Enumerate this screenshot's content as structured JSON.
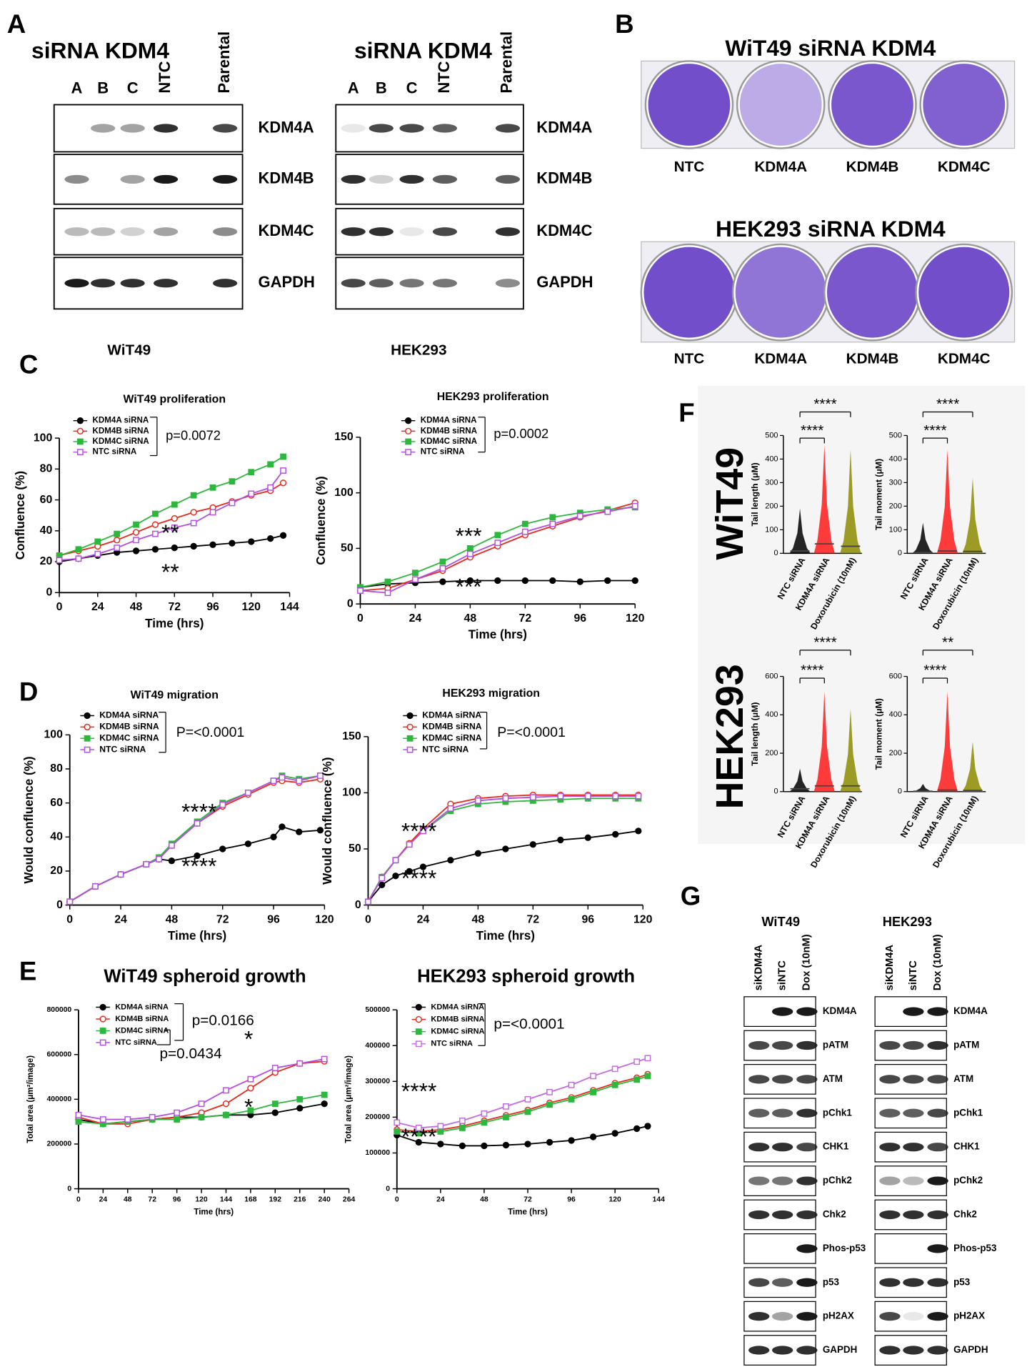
{
  "panel_labels": [
    "A",
    "B",
    "C",
    "D",
    "E",
    "F",
    "G"
  ],
  "blots_a": [
    {
      "title": "siRNA KDM4",
      "lanes": [
        "A",
        "B",
        "C",
        "NTC",
        "Parental"
      ],
      "rows": [
        "KDM4A",
        "KDM4B",
        "KDM4C",
        "GAPDH"
      ],
      "cell_line": "WiT49"
    },
    {
      "title": "siRNA KDM4",
      "lanes": [
        "A",
        "B",
        "C",
        "NTC",
        "Parental"
      ],
      "rows": [
        "KDM4A",
        "KDM4B",
        "KDM4C",
        "GAPDH"
      ],
      "cell_line": "HEK293"
    }
  ],
  "colonies_b": [
    {
      "title": "WiT49 siRNA KDM4",
      "wells": [
        "NTC",
        "KDM4A",
        "KDM4B",
        "KDM4C"
      ]
    },
    {
      "title": "HEK293 siRNA KDM4",
      "wells": [
        "NTC",
        "KDM4A",
        "KDM4B",
        "KDM4C"
      ]
    }
  ],
  "side_labels_f": [
    "WiT49",
    "HEK293"
  ],
  "blots_g": [
    {
      "title": "WiT49",
      "lanes": [
        "siKDM4A",
        "siNTC",
        "Dox (10nM)"
      ],
      "rows": [
        "KDM4A",
        "pATM",
        "ATM",
        "pChk1",
        "CHK1",
        "pChk2",
        "Chk2",
        "Phos-p53",
        "p53",
        "pH2AX",
        "GAPDH"
      ]
    },
    {
      "title": "HEK293",
      "lanes": [
        "siKDM4A",
        "siNTC",
        "Dox (10nM)"
      ],
      "rows": [
        "KDM4A",
        "pATM",
        "ATM",
        "pChk1",
        "CHK1",
        "pChk2",
        "Chk2",
        "Phos-p53",
        "p53",
        "pH2AX",
        "GAPDH"
      ]
    }
  ],
  "chart_data": [
    {
      "type": "line",
      "title": "WiT49 proliferation",
      "xlabel": "Time (hrs)",
      "ylabel": "Confluence (%)",
      "xlim": [
        0,
        144
      ],
      "xticks": [
        0,
        24,
        48,
        72,
        96,
        120,
        144
      ],
      "ylim": [
        0,
        100
      ],
      "yticks": [
        0,
        20,
        40,
        60,
        80,
        100
      ],
      "x": [
        0,
        12,
        24,
        36,
        48,
        60,
        72,
        84,
        96,
        108,
        120,
        132,
        140
      ],
      "series": [
        {
          "name": "KDM4A siRNA",
          "color": "#000000",
          "marker": "circle",
          "values": [
            20,
            22,
            24,
            26,
            27,
            28,
            29,
            30,
            31,
            32,
            33,
            35,
            37
          ]
        },
        {
          "name": "KDM4B siRNA",
          "color": "#e8291c",
          "marker": "open-circle",
          "values": [
            24,
            27,
            30,
            34,
            39,
            44,
            48,
            52,
            55,
            59,
            63,
            66,
            71
          ]
        },
        {
          "name": "KDM4C siRNA",
          "color": "#2db83d",
          "marker": "square",
          "values": [
            24,
            28,
            33,
            38,
            44,
            51,
            57,
            63,
            68,
            72,
            78,
            83,
            88
          ]
        },
        {
          "name": "NTC siRNA",
          "color": "#b44fe0",
          "marker": "open-square",
          "values": [
            21,
            22,
            25,
            29,
            34,
            38,
            42,
            45,
            52,
            58,
            64,
            68,
            79
          ]
        }
      ],
      "annotations": [
        "p=0.0072",
        "**",
        "**"
      ]
    },
    {
      "type": "line",
      "title": "HEK293 proliferation",
      "xlabel": "Time (hrs)",
      "ylabel": "Confluence (%)",
      "xlim": [
        0,
        120
      ],
      "xticks": [
        0,
        24,
        48,
        72,
        96,
        120
      ],
      "ylim": [
        0,
        150
      ],
      "yticks": [
        0,
        50,
        100,
        150
      ],
      "x": [
        0,
        12,
        24,
        36,
        48,
        60,
        72,
        84,
        96,
        108,
        120
      ],
      "series": [
        {
          "name": "KDM4A siRNA",
          "color": "#000000",
          "marker": "circle",
          "values": [
            15,
            18,
            19,
            20,
            21,
            21,
            21,
            21,
            20,
            21,
            21
          ]
        },
        {
          "name": "KDM4B siRNA",
          "color": "#e8291c",
          "marker": "open-circle",
          "values": [
            12,
            14,
            22,
            30,
            42,
            52,
            62,
            70,
            78,
            84,
            91
          ]
        },
        {
          "name": "KDM4C siRNA",
          "color": "#2db83d",
          "marker": "square",
          "values": [
            15,
            20,
            28,
            38,
            50,
            62,
            72,
            78,
            82,
            85,
            87
          ]
        },
        {
          "name": "NTC siRNA",
          "color": "#b44fe0",
          "marker": "open-square",
          "values": [
            12,
            10,
            22,
            32,
            45,
            55,
            65,
            72,
            79,
            83,
            88
          ]
        }
      ],
      "annotations": [
        "p=0.0002",
        "***",
        "***"
      ]
    },
    {
      "type": "line",
      "title": "WiT49 migration",
      "xlabel": "Time (hrs)",
      "ylabel": "Would confluence (%)",
      "xlim": [
        0,
        120
      ],
      "xticks": [
        0,
        24,
        48,
        72,
        96,
        120
      ],
      "ylim": [
        0,
        100
      ],
      "yticks": [
        0,
        20,
        40,
        60,
        80,
        100
      ],
      "x": [
        0,
        12,
        24,
        36,
        42,
        48,
        60,
        72,
        84,
        96,
        100,
        108,
        118
      ],
      "series": [
        {
          "name": "KDM4A siRNA",
          "color": "#000000",
          "marker": "circle",
          "values": [
            2,
            11,
            18,
            24,
            27,
            26,
            29,
            33,
            36,
            40,
            46,
            43,
            44
          ]
        },
        {
          "name": "KDM4B siRNA",
          "color": "#e8291c",
          "marker": "open-circle",
          "values": [
            2,
            11,
            18,
            24,
            28,
            35,
            48,
            58,
            65,
            72,
            73,
            72,
            74
          ]
        },
        {
          "name": "KDM4C siRNA",
          "color": "#2db83d",
          "marker": "square",
          "values": [
            2,
            11,
            18,
            24,
            28,
            36,
            49,
            60,
            66,
            73,
            76,
            74,
            76
          ]
        },
        {
          "name": "NTC siRNA",
          "color": "#b44fe0",
          "marker": "open-square",
          "values": [
            2,
            11,
            18,
            24,
            27,
            35,
            48,
            59,
            66,
            73,
            75,
            73,
            76
          ]
        }
      ],
      "annotations": [
        "P=<0.0001",
        "****",
        "****"
      ]
    },
    {
      "type": "line",
      "title": "HEK293 migration",
      "xlabel": "Time (hrs)",
      "ylabel": "Would confluence (%)",
      "xlim": [
        0,
        120
      ],
      "xticks": [
        0,
        24,
        48,
        72,
        96,
        120
      ],
      "ylim": [
        0,
        150
      ],
      "yticks": [
        0,
        50,
        100,
        150
      ],
      "x": [
        0,
        6,
        12,
        18,
        24,
        36,
        48,
        60,
        72,
        84,
        96,
        108,
        118
      ],
      "series": [
        {
          "name": "KDM4A siRNA",
          "color": "#000000",
          "marker": "circle",
          "values": [
            3,
            18,
            26,
            30,
            34,
            40,
            46,
            50,
            54,
            58,
            60,
            63,
            66
          ]
        },
        {
          "name": "KDM4B siRNA",
          "color": "#e8291c",
          "marker": "open-circle",
          "values": [
            3,
            25,
            40,
            55,
            68,
            90,
            95,
            97,
            98,
            98,
            98,
            98,
            98
          ]
        },
        {
          "name": "KDM4C siRNA",
          "color": "#2db83d",
          "marker": "square",
          "values": [
            3,
            25,
            40,
            54,
            66,
            84,
            90,
            92,
            93,
            94,
            95,
            95,
            95
          ]
        },
        {
          "name": "NTC siRNA",
          "color": "#b44fe0",
          "marker": "open-square",
          "values": [
            3,
            24,
            40,
            54,
            66,
            86,
            93,
            95,
            96,
            97,
            97,
            97,
            97
          ]
        }
      ],
      "annotations": [
        "P=<0.0001",
        "****",
        "****"
      ]
    },
    {
      "type": "line",
      "title": "WiT49 spheroid growth",
      "xlabel": "Time (hrs)",
      "ylabel": "Total area (μm²/image)",
      "xlim": [
        0,
        264
      ],
      "xticks": [
        0,
        24,
        48,
        72,
        96,
        120,
        144,
        168,
        192,
        216,
        240,
        264
      ],
      "ylim": [
        0,
        800000
      ],
      "yticks": [
        0,
        200000,
        400000,
        600000,
        800000
      ],
      "x": [
        0,
        24,
        48,
        72,
        96,
        120,
        144,
        168,
        192,
        216,
        240
      ],
      "series": [
        {
          "name": "KDM4A siRNA",
          "color": "#000000",
          "marker": "circle",
          "values": [
            310000,
            290000,
            300000,
            310000,
            320000,
            320000,
            330000,
            330000,
            340000,
            360000,
            380000
          ]
        },
        {
          "name": "KDM4B siRNA",
          "color": "#e8291c",
          "marker": "open-circle",
          "values": [
            320000,
            290000,
            290000,
            310000,
            320000,
            340000,
            380000,
            450000,
            520000,
            560000,
            570000
          ]
        },
        {
          "name": "KDM4C siRNA",
          "color": "#2db83d",
          "marker": "square",
          "values": [
            300000,
            290000,
            300000,
            310000,
            310000,
            320000,
            330000,
            350000,
            380000,
            400000,
            420000
          ]
        },
        {
          "name": "NTC siRNA",
          "color": "#b44fe0",
          "marker": "open-square",
          "values": [
            330000,
            310000,
            310000,
            320000,
            340000,
            380000,
            440000,
            490000,
            540000,
            560000,
            580000
          ]
        }
      ],
      "annotations": [
        "p=0.0166",
        "p=0.0434",
        "*",
        "*"
      ]
    },
    {
      "type": "line",
      "title": "HEK293 spheroid growth",
      "xlabel": "Time (hrs)",
      "ylabel": "Total area (μm²/image)",
      "xlim": [
        0,
        144
      ],
      "xticks": [
        0,
        24,
        48,
        72,
        96,
        120,
        144
      ],
      "ylim": [
        0,
        500000
      ],
      "yticks": [
        0,
        100000,
        200000,
        300000,
        400000,
        500000
      ],
      "x": [
        0,
        12,
        24,
        36,
        48,
        60,
        72,
        84,
        96,
        108,
        120,
        132,
        138
      ],
      "series": [
        {
          "name": "KDM4A siRNA",
          "color": "#000000",
          "marker": "circle",
          "values": [
            150000,
            130000,
            125000,
            120000,
            120000,
            122000,
            125000,
            130000,
            135000,
            145000,
            155000,
            168000,
            175000
          ]
        },
        {
          "name": "KDM4B siRNA",
          "color": "#e8291c",
          "marker": "open-circle",
          "values": [
            165000,
            160000,
            165000,
            175000,
            190000,
            205000,
            220000,
            240000,
            255000,
            275000,
            295000,
            310000,
            320000
          ]
        },
        {
          "name": "KDM4C siRNA",
          "color": "#2db83d",
          "marker": "square",
          "values": [
            160000,
            155000,
            160000,
            170000,
            185000,
            200000,
            215000,
            235000,
            250000,
            270000,
            290000,
            305000,
            315000
          ]
        },
        {
          "name": "NTC siRNA",
          "color": "#c36be0",
          "marker": "open-square",
          "values": [
            185000,
            170000,
            175000,
            190000,
            210000,
            230000,
            250000,
            270000,
            290000,
            315000,
            335000,
            355000,
            365000
          ]
        }
      ],
      "annotations": [
        "p=<0.0001",
        "****",
        "****"
      ]
    },
    {
      "type": "dotplot",
      "ylabel": "Tail length (μM)",
      "categories": [
        "NTC siRNA",
        "KDM4A siRNA",
        "Doxorubicin (10nM)"
      ],
      "colors": [
        "#000000",
        "#ff1a1a",
        "#8b8b00"
      ],
      "ylim": [
        0,
        500
      ],
      "yticks": [
        0,
        100,
        200,
        300,
        400,
        500
      ],
      "values": [
        10,
        40,
        30
      ],
      "max": [
        190,
        460,
        440
      ],
      "annotations": [
        "****",
        "****"
      ]
    },
    {
      "type": "dotplot",
      "ylabel": "Tail moment (μM)",
      "categories": [
        "NTC siRNA",
        "KDM4A siRNA",
        "Doxorubicin (10nM)"
      ],
      "colors": [
        "#000000",
        "#ff1a1a",
        "#8b8b00"
      ],
      "ylim": [
        0,
        500
      ],
      "yticks": [
        0,
        100,
        200,
        300,
        400,
        500
      ],
      "values": [
        3,
        10,
        8
      ],
      "max": [
        130,
        440,
        320
      ],
      "annotations": [
        "****",
        "****"
      ]
    },
    {
      "type": "dotplot",
      "ylabel": "Tail length (μM)",
      "categories": [
        "NTC siRNA",
        "KDM4A siRNA",
        "Doxorubicin (10nM)"
      ],
      "colors": [
        "#000000",
        "#ff1a1a",
        "#8b8b00"
      ],
      "ylim": [
        0,
        600
      ],
      "yticks": [
        0,
        200,
        400,
        600
      ],
      "values": [
        15,
        30,
        30
      ],
      "max": [
        120,
        520,
        430
      ],
      "annotations": [
        "****",
        "****"
      ]
    },
    {
      "type": "dotplot",
      "ylabel": "Tail moment (μM)",
      "categories": [
        "NTC siRNA",
        "KDM4A siRNA",
        "Doxorubicin (10nM)"
      ],
      "colors": [
        "#000000",
        "#ff1a1a",
        "#8b8b00"
      ],
      "ylim": [
        0,
        600
      ],
      "yticks": [
        0,
        200,
        400,
        600
      ],
      "values": [
        2,
        8,
        6
      ],
      "max": [
        40,
        520,
        260
      ],
      "annotations": [
        "**",
        "****"
      ]
    }
  ]
}
